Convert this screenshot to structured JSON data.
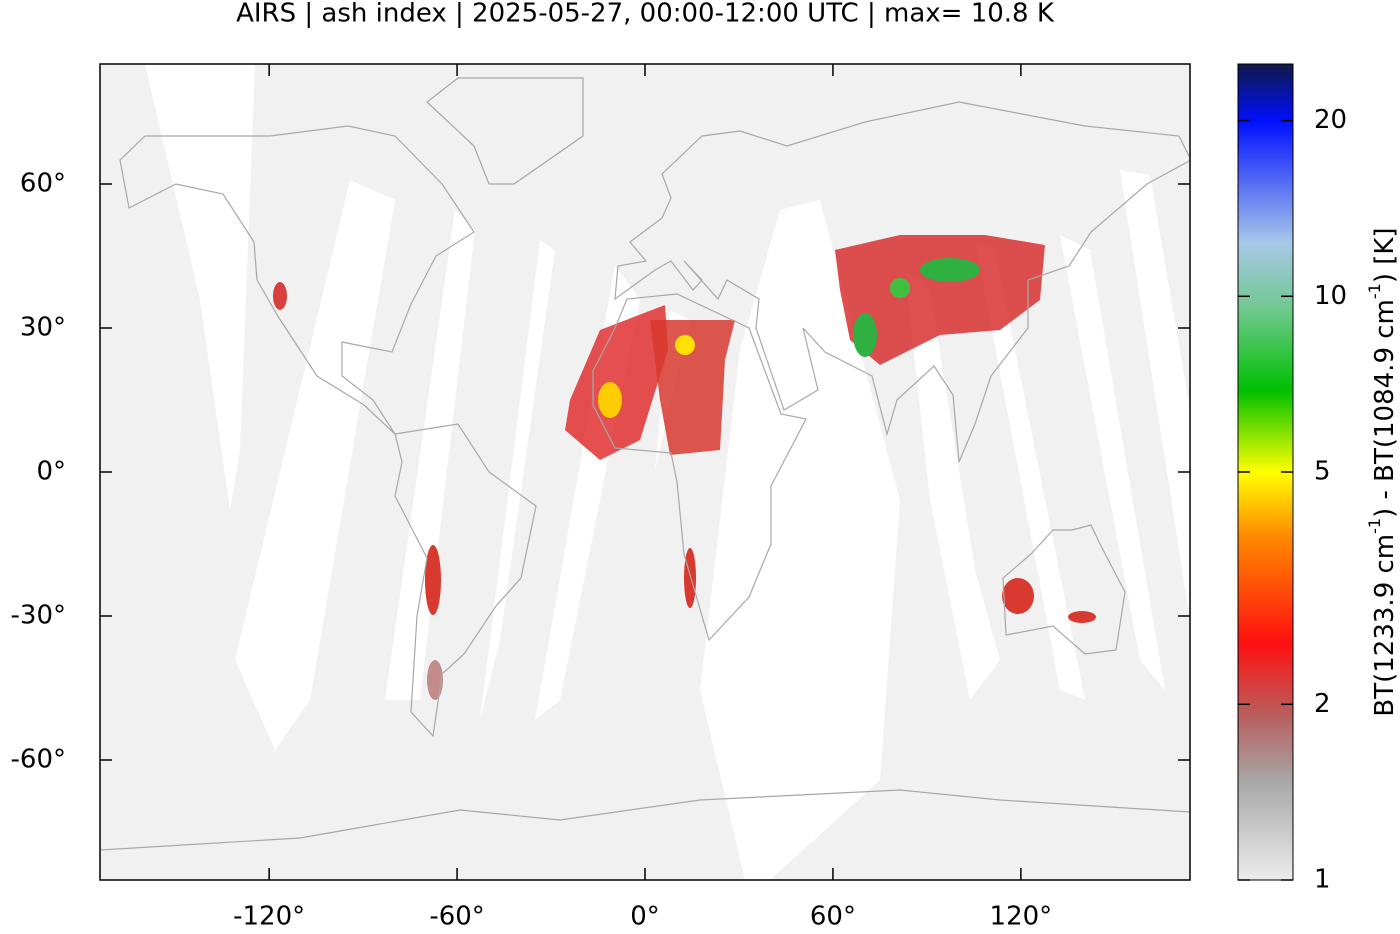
{
  "chart_data": {
    "type": "map",
    "title": "AIRS | ash index | 2025-05-27, 00:00-12:00 UTC | max= 10.8 K",
    "xlim": [
      -174,
      174
    ],
    "ylim": [
      -85,
      85
    ],
    "xticks": [
      {
        "value": -120,
        "label": "-120°"
      },
      {
        "value": -60,
        "label": "-60°"
      },
      {
        "value": 0,
        "label": "0°"
      },
      {
        "value": 60,
        "label": "60°"
      },
      {
        "value": 120,
        "label": "120°"
      }
    ],
    "yticks": [
      {
        "value": 60,
        "label": "60°"
      },
      {
        "value": 30,
        "label": "30°"
      },
      {
        "value": 0,
        "label": "0°"
      },
      {
        "value": -30,
        "label": "-30°"
      },
      {
        "value": -60,
        "label": "-60°"
      }
    ],
    "colorbar": {
      "label": [
        "BT(1233.9 cm",
        "-1",
        ") - BT(1084.9 cm",
        "-1",
        ") [K]"
      ],
      "lim": [
        1,
        25
      ],
      "ticks": [
        1,
        2,
        5,
        10,
        20
      ],
      "log": true
    }
  }
}
